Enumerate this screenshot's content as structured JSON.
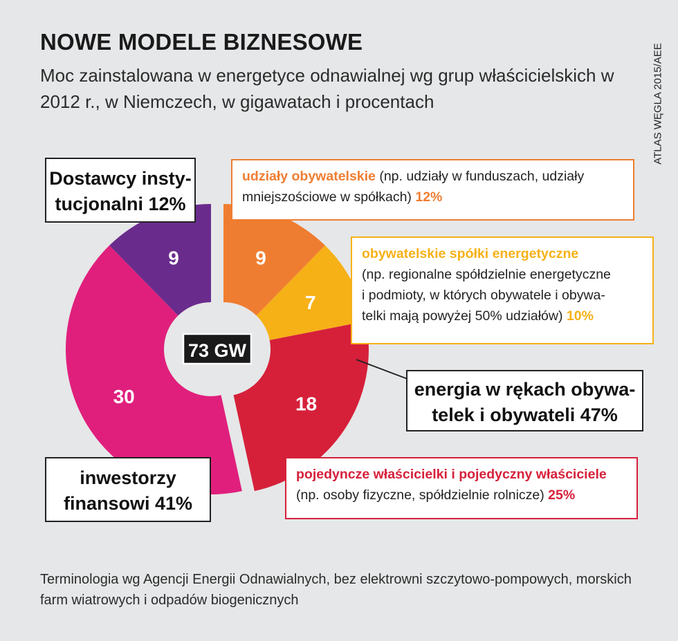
{
  "title": "NOWE MODELE BIZNESOWE",
  "subtitle": "Moc zainstalowana w energetyce odnawialnej wg grup właścicielskich w 2012 r., w Niemczech, w gigawatach i procentach",
  "source": "ATLAS WĘGLA 2015/AEE",
  "chart_data": {
    "type": "pie",
    "variant": "donut",
    "unit": "GW",
    "total_label": "73 GW",
    "total": 73,
    "slices": [
      {
        "name": "udziały obywatelskie",
        "value": 9,
        "percent": 12,
        "color": "#ef7d31",
        "group": "citizens"
      },
      {
        "name": "obywatelskie spółki energetyczne",
        "value": 7,
        "percent": 10,
        "color": "#f6b117",
        "group": "citizens"
      },
      {
        "name": "pojedyncze właścicielki i pojedyczny właściciele",
        "value": 18,
        "percent": 25,
        "color": "#d6203a",
        "group": "citizens"
      },
      {
        "name": "inwestorzy finansowi",
        "value": 30,
        "percent": 41,
        "color": "#e01f7d",
        "group": "other"
      },
      {
        "name": "Dostawcy instytucjonalni",
        "value": 9,
        "percent": 12,
        "color": "#6a2c8c",
        "group": "other"
      }
    ]
  },
  "slice_labels": [
    "9",
    "7",
    "18",
    "30",
    "9"
  ],
  "labels": {
    "institutional": "Dostawcy insty-tucjonalni 12%",
    "citizens": "energia w rękach obywa-telek i obywateli 47%",
    "financial": "inwestorzy finansowi 41%",
    "share_title": "udziały obywatelskie",
    "share_desc": " (np. udziały w funduszach, udziały mniejszościowe w spółkach) ",
    "share_pct": "12%",
    "coop_title": "obywatelskie spółki energetyczne",
    "coop_desc": "(np. regionalne spółdzielnie energetyczne i podmioty, w których obywatele i obywa-telki mają powyżej 50% udziałów) ",
    "coop_pct": "10%",
    "indiv_title": "pojedyncze właścicielki i pojedyczny właściciele",
    "indiv_desc": "(np. osoby fizyczne, spółdzielnie rolnicze) ",
    "indiv_pct": "25%"
  },
  "note": "Terminologia wg Agencji Energii Odnawialnych, bez elektrowni szczytowo-pompowych, morskich farm wiatrowych i odpadów biogenicznych"
}
